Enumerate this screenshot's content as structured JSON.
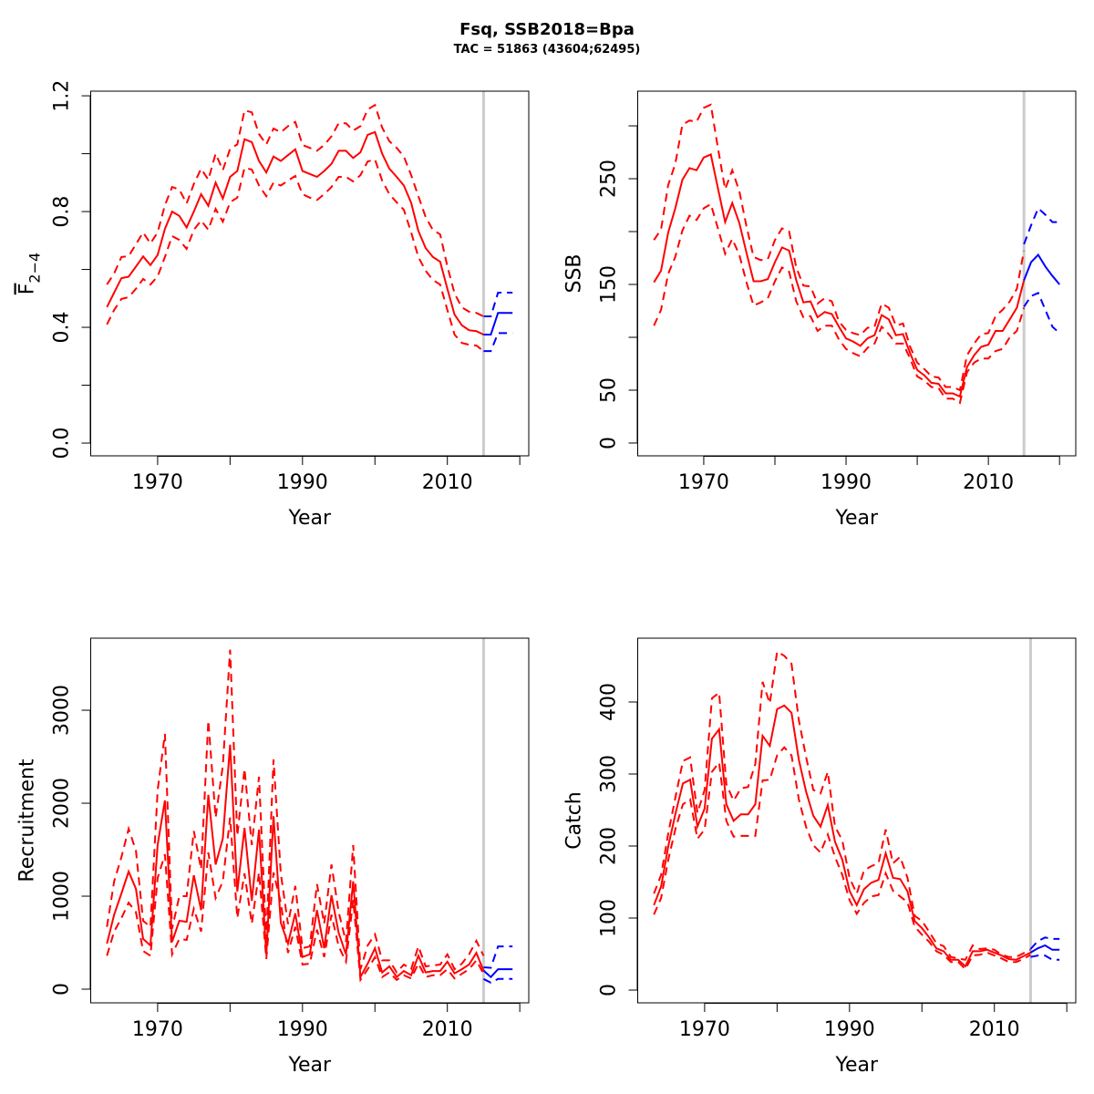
{
  "title": "Fsq, SSB2018=Bpa",
  "subtitle": "TAC = 51863 (43604;62495)",
  "colors": {
    "historical": "#ff0000",
    "forecast": "#0000ff",
    "reference_line": "#cccccc"
  },
  "chart_data": [
    {
      "type": "line",
      "xlabel": "Year",
      "ylabel": "F",
      "ylabel_subscript": "2−4",
      "ylabel_overline": true,
      "xlim": [
        1960.76,
        2021.24
      ],
      "ylim": [
        -0.044,
        1.216
      ],
      "xticks": [
        1970,
        1980,
        1990,
        2000,
        2010,
        2020
      ],
      "xtick_labels": [
        "1970",
        "",
        "1990",
        "",
        "2010",
        ""
      ],
      "yticks": [
        0,
        0.2,
        0.4,
        0.6,
        0.8,
        1.0,
        1.2
      ],
      "ytick_labels": [
        "0.0",
        "",
        "0.4",
        "",
        "0.8",
        "",
        "1.2"
      ],
      "vline": 2015,
      "historical": {
        "years_start": 1963,
        "mean": [
          0.47,
          0.52,
          0.57,
          0.575,
          0.61,
          0.645,
          0.615,
          0.65,
          0.74,
          0.8,
          0.785,
          0.745,
          0.8,
          0.86,
          0.82,
          0.9,
          0.845,
          0.92,
          0.94,
          1.05,
          1.04,
          0.975,
          0.935,
          0.99,
          0.975,
          0.995,
          1.015,
          0.94,
          0.93,
          0.92,
          0.94,
          0.965,
          1.01,
          1.01,
          0.985,
          1.005,
          1.065,
          1.075,
          1.0,
          0.948,
          0.92,
          0.89,
          0.83,
          0.733,
          0.674,
          0.643,
          0.627,
          0.533,
          0.444,
          0.407,
          0.39,
          0.387,
          0.375
        ],
        "upper": [
          0.548,
          0.586,
          0.643,
          0.646,
          0.687,
          0.728,
          0.69,
          0.728,
          0.822,
          0.885,
          0.876,
          0.828,
          0.895,
          0.948,
          0.91,
          1.0,
          0.943,
          1.017,
          1.032,
          1.15,
          1.143,
          1.068,
          1.032,
          1.087,
          1.074,
          1.095,
          1.11,
          1.03,
          1.02,
          1.01,
          1.03,
          1.06,
          1.105,
          1.105,
          1.08,
          1.095,
          1.153,
          1.168,
          1.09,
          1.043,
          1.02,
          0.99,
          0.926,
          0.853,
          0.781,
          0.737,
          0.721,
          0.611,
          0.517,
          0.469,
          0.454,
          0.45,
          0.438
        ],
        "lower": [
          0.41,
          0.46,
          0.498,
          0.504,
          0.533,
          0.567,
          0.548,
          0.576,
          0.643,
          0.715,
          0.702,
          0.671,
          0.737,
          0.769,
          0.737,
          0.809,
          0.765,
          0.832,
          0.848,
          0.951,
          0.945,
          0.89,
          0.853,
          0.9,
          0.89,
          0.907,
          0.923,
          0.86,
          0.848,
          0.84,
          0.86,
          0.885,
          0.92,
          0.92,
          0.904,
          0.926,
          0.973,
          0.98,
          0.907,
          0.86,
          0.832,
          0.806,
          0.728,
          0.643,
          0.595,
          0.564,
          0.548,
          0.46,
          0.375,
          0.346,
          0.34,
          0.337,
          0.318
        ]
      },
      "forecast": {
        "years_start": 2015,
        "mean": [
          0.375,
          0.375,
          0.45,
          0.45,
          0.45
        ],
        "upper": [
          0.438,
          0.438,
          0.52,
          0.52,
          0.52
        ],
        "lower": [
          0.318,
          0.318,
          0.38,
          0.38,
          0.38
        ]
      }
    },
    {
      "type": "line",
      "xlabel": "Year",
      "ylabel": "SSB",
      "xlim": [
        1960.72,
        2022.28
      ],
      "ylim": [
        -12.1,
        332.8
      ],
      "xticks": [
        1970,
        1980,
        1990,
        2000,
        2010,
        2020
      ],
      "xtick_labels": [
        "1970",
        "",
        "1990",
        "",
        "2010",
        ""
      ],
      "yticks": [
        0,
        50,
        100,
        150,
        200,
        250,
        300
      ],
      "ytick_labels": [
        "0",
        "50",
        "",
        "150",
        "",
        "250",
        ""
      ],
      "vline": 2015,
      "historical": {
        "years_start": 1963,
        "mean": [
          152,
          163,
          199,
          222,
          249,
          260,
          258,
          270,
          273,
          241,
          209,
          227,
          208,
          180,
          153,
          153,
          155,
          171,
          185,
          182,
          154,
          133,
          134,
          119,
          124,
          122,
          110,
          99,
          96,
          92,
          99,
          102,
          121,
          117,
          102,
          103,
          85,
          69,
          64,
          57,
          56,
          47,
          47,
          44,
          72,
          83,
          91,
          93,
          106,
          106,
          117,
          128,
          154
        ],
        "upper": [
          192,
          202,
          244,
          264,
          301,
          305,
          304,
          317,
          320,
          279,
          240,
          258,
          238,
          205,
          176,
          173,
          174,
          192,
          203,
          200,
          166,
          149,
          148,
          132,
          137,
          134,
          115,
          107,
          104,
          102,
          109,
          110,
          132,
          128,
          111,
          113,
          91,
          76,
          70,
          63,
          62,
          53,
          53,
          50,
          83,
          94,
          103,
          104,
          120,
          126,
          134,
          146,
          182
        ],
        "lower": [
          111,
          126,
          160,
          176,
          201,
          215,
          211,
          222,
          226,
          203,
          179,
          193,
          178,
          152,
          130,
          133,
          137,
          153,
          166,
          162,
          134,
          119,
          120,
          106,
          111,
          111,
          98,
          89,
          85,
          82,
          90,
          94,
          110,
          103,
          94,
          94,
          80,
          63,
          59,
          53,
          52,
          42,
          42,
          38,
          67,
          76,
          80,
          80,
          87,
          89,
          100,
          106,
          128
        ]
      },
      "forecast": {
        "years_start": 2015,
        "mean": [
          154,
          171,
          178,
          167,
          158,
          150
        ],
        "upper": [
          188,
          206,
          222,
          216,
          209,
          209
        ],
        "lower": [
          129,
          139,
          142,
          126,
          110,
          104
        ]
      }
    },
    {
      "type": "line",
      "xlabel": "Year",
      "ylabel": "Recruitment",
      "xlim": [
        1960.76,
        2021.24
      ],
      "ylim": [
        -147,
        3775
      ],
      "xticks": [
        1970,
        1980,
        1990,
        2000,
        2010,
        2020
      ],
      "xtick_labels": [
        "1970",
        "",
        "1990",
        "",
        "2010",
        ""
      ],
      "yticks": [
        0,
        1000,
        2000,
        3000
      ],
      "ytick_labels": [
        "0",
        "1000",
        "2000",
        "3000"
      ],
      "vline": 2015,
      "historical": {
        "years_start": 1963,
        "mean": [
          490,
          800,
          1030,
          1265,
          1080,
          540,
          470,
          1550,
          2030,
          510,
          735,
          725,
          1225,
          850,
          2090,
          1340,
          1620,
          2630,
          1050,
          1735,
          950,
          1715,
          370,
          1860,
          715,
          490,
          815,
          345,
          375,
          850,
          440,
          1010,
          605,
          375,
          1160,
          130,
          275,
          440,
          180,
          245,
          130,
          195,
          150,
          360,
          180,
          195,
          195,
          295,
          170,
          215,
          265,
          390,
          200
        ],
        "upper": [
          670,
          1160,
          1420,
          1725,
          1490,
          735,
          670,
          2140,
          2745,
          650,
          1000,
          1000,
          1700,
          1290,
          2890,
          1845,
          2400,
          3650,
          1650,
          2370,
          1550,
          2285,
          540,
          2470,
          1245,
          700,
          1110,
          440,
          460,
          1130,
          705,
          1340,
          830,
          510,
          1550,
          215,
          470,
          590,
          310,
          310,
          180,
          265,
          215,
          460,
          245,
          255,
          265,
          375,
          215,
          275,
          375,
          520,
          360
        ],
        "lower": [
          360,
          620,
          765,
          930,
          830,
          410,
          360,
          1195,
          1450,
          375,
          540,
          530,
          865,
          620,
          1470,
          980,
          1160,
          1845,
          765,
          1245,
          705,
          1255,
          325,
          1255,
          930,
          390,
          670,
          265,
          275,
          640,
          345,
          800,
          460,
          295,
          960,
          100,
          215,
          345,
          130,
          180,
          100,
          150,
          115,
          275,
          130,
          150,
          150,
          215,
          115,
          165,
          215,
          310,
          165
        ]
      },
      "forecast": {
        "years_start": 2015,
        "mean": [
          200,
          130,
          215,
          215,
          215
        ],
        "upper": [
          235,
          230,
          460,
          460,
          460
        ],
        "lower": [
          110,
          70,
          110,
          110,
          110
        ]
      }
    },
    {
      "type": "line",
      "xlabel": "Year",
      "ylabel": "Catch",
      "xlim": [
        1960.76,
        2021.24
      ],
      "ylim": [
        -17.7,
        488.6
      ],
      "xticks": [
        1970,
        1980,
        1990,
        2000,
        2010,
        2020
      ],
      "xtick_labels": [
        "1970",
        "",
        "1990",
        "",
        "2010",
        ""
      ],
      "yticks": [
        0,
        100,
        200,
        300,
        400
      ],
      "ytick_labels": [
        "0",
        "100",
        "200",
        "300",
        "400"
      ],
      "vline": 2015,
      "historical": {
        "years_start": 1963,
        "mean": [
          118,
          144,
          201,
          246,
          287,
          292,
          227,
          252,
          349,
          362,
          258,
          235,
          244,
          244,
          258,
          353,
          339,
          390,
          395,
          385,
          320,
          276,
          242,
          227,
          257,
          206,
          181,
          138,
          118,
          140,
          149,
          153,
          190,
          156,
          154,
          137,
          96,
          86,
          73,
          58,
          54,
          42,
          42,
          33,
          54,
          54,
          56,
          52,
          48,
          43,
          42,
          47,
          52
        ],
        "upper": [
          134,
          160,
          219,
          269,
          318,
          323,
          246,
          278,
          405,
          413,
          286,
          263,
          280,
          282,
          314,
          428,
          398,
          470,
          464,
          453,
          375,
          324,
          278,
          273,
          303,
          227,
          208,
          156,
          134,
          166,
          172,
          176,
          223,
          176,
          185,
          156,
          103,
          96,
          81,
          65,
          61,
          46,
          44,
          42,
          62,
          57,
          58,
          56,
          49,
          46,
          46,
          51,
          56
        ],
        "lower": [
          105,
          128,
          182,
          225,
          258,
          265,
          210,
          223,
          303,
          316,
          235,
          213,
          214,
          214,
          214,
          291,
          292,
          326,
          337,
          326,
          265,
          227,
          201,
          191,
          216,
          185,
          160,
          125,
          106,
          121,
          130,
          132,
          162,
          138,
          130,
          122,
          88,
          77,
          67,
          54,
          49,
          39,
          39,
          29,
          48,
          49,
          52,
          48,
          44,
          39,
          39,
          43,
          49
        ]
      },
      "forecast": {
        "years_start": 2015,
        "mean": [
          52,
          58,
          62,
          56,
          56
        ],
        "upper": [
          57,
          68,
          73,
          71,
          71
        ],
        "lower": [
          46,
          48,
          48,
          42,
          42
        ]
      }
    }
  ]
}
